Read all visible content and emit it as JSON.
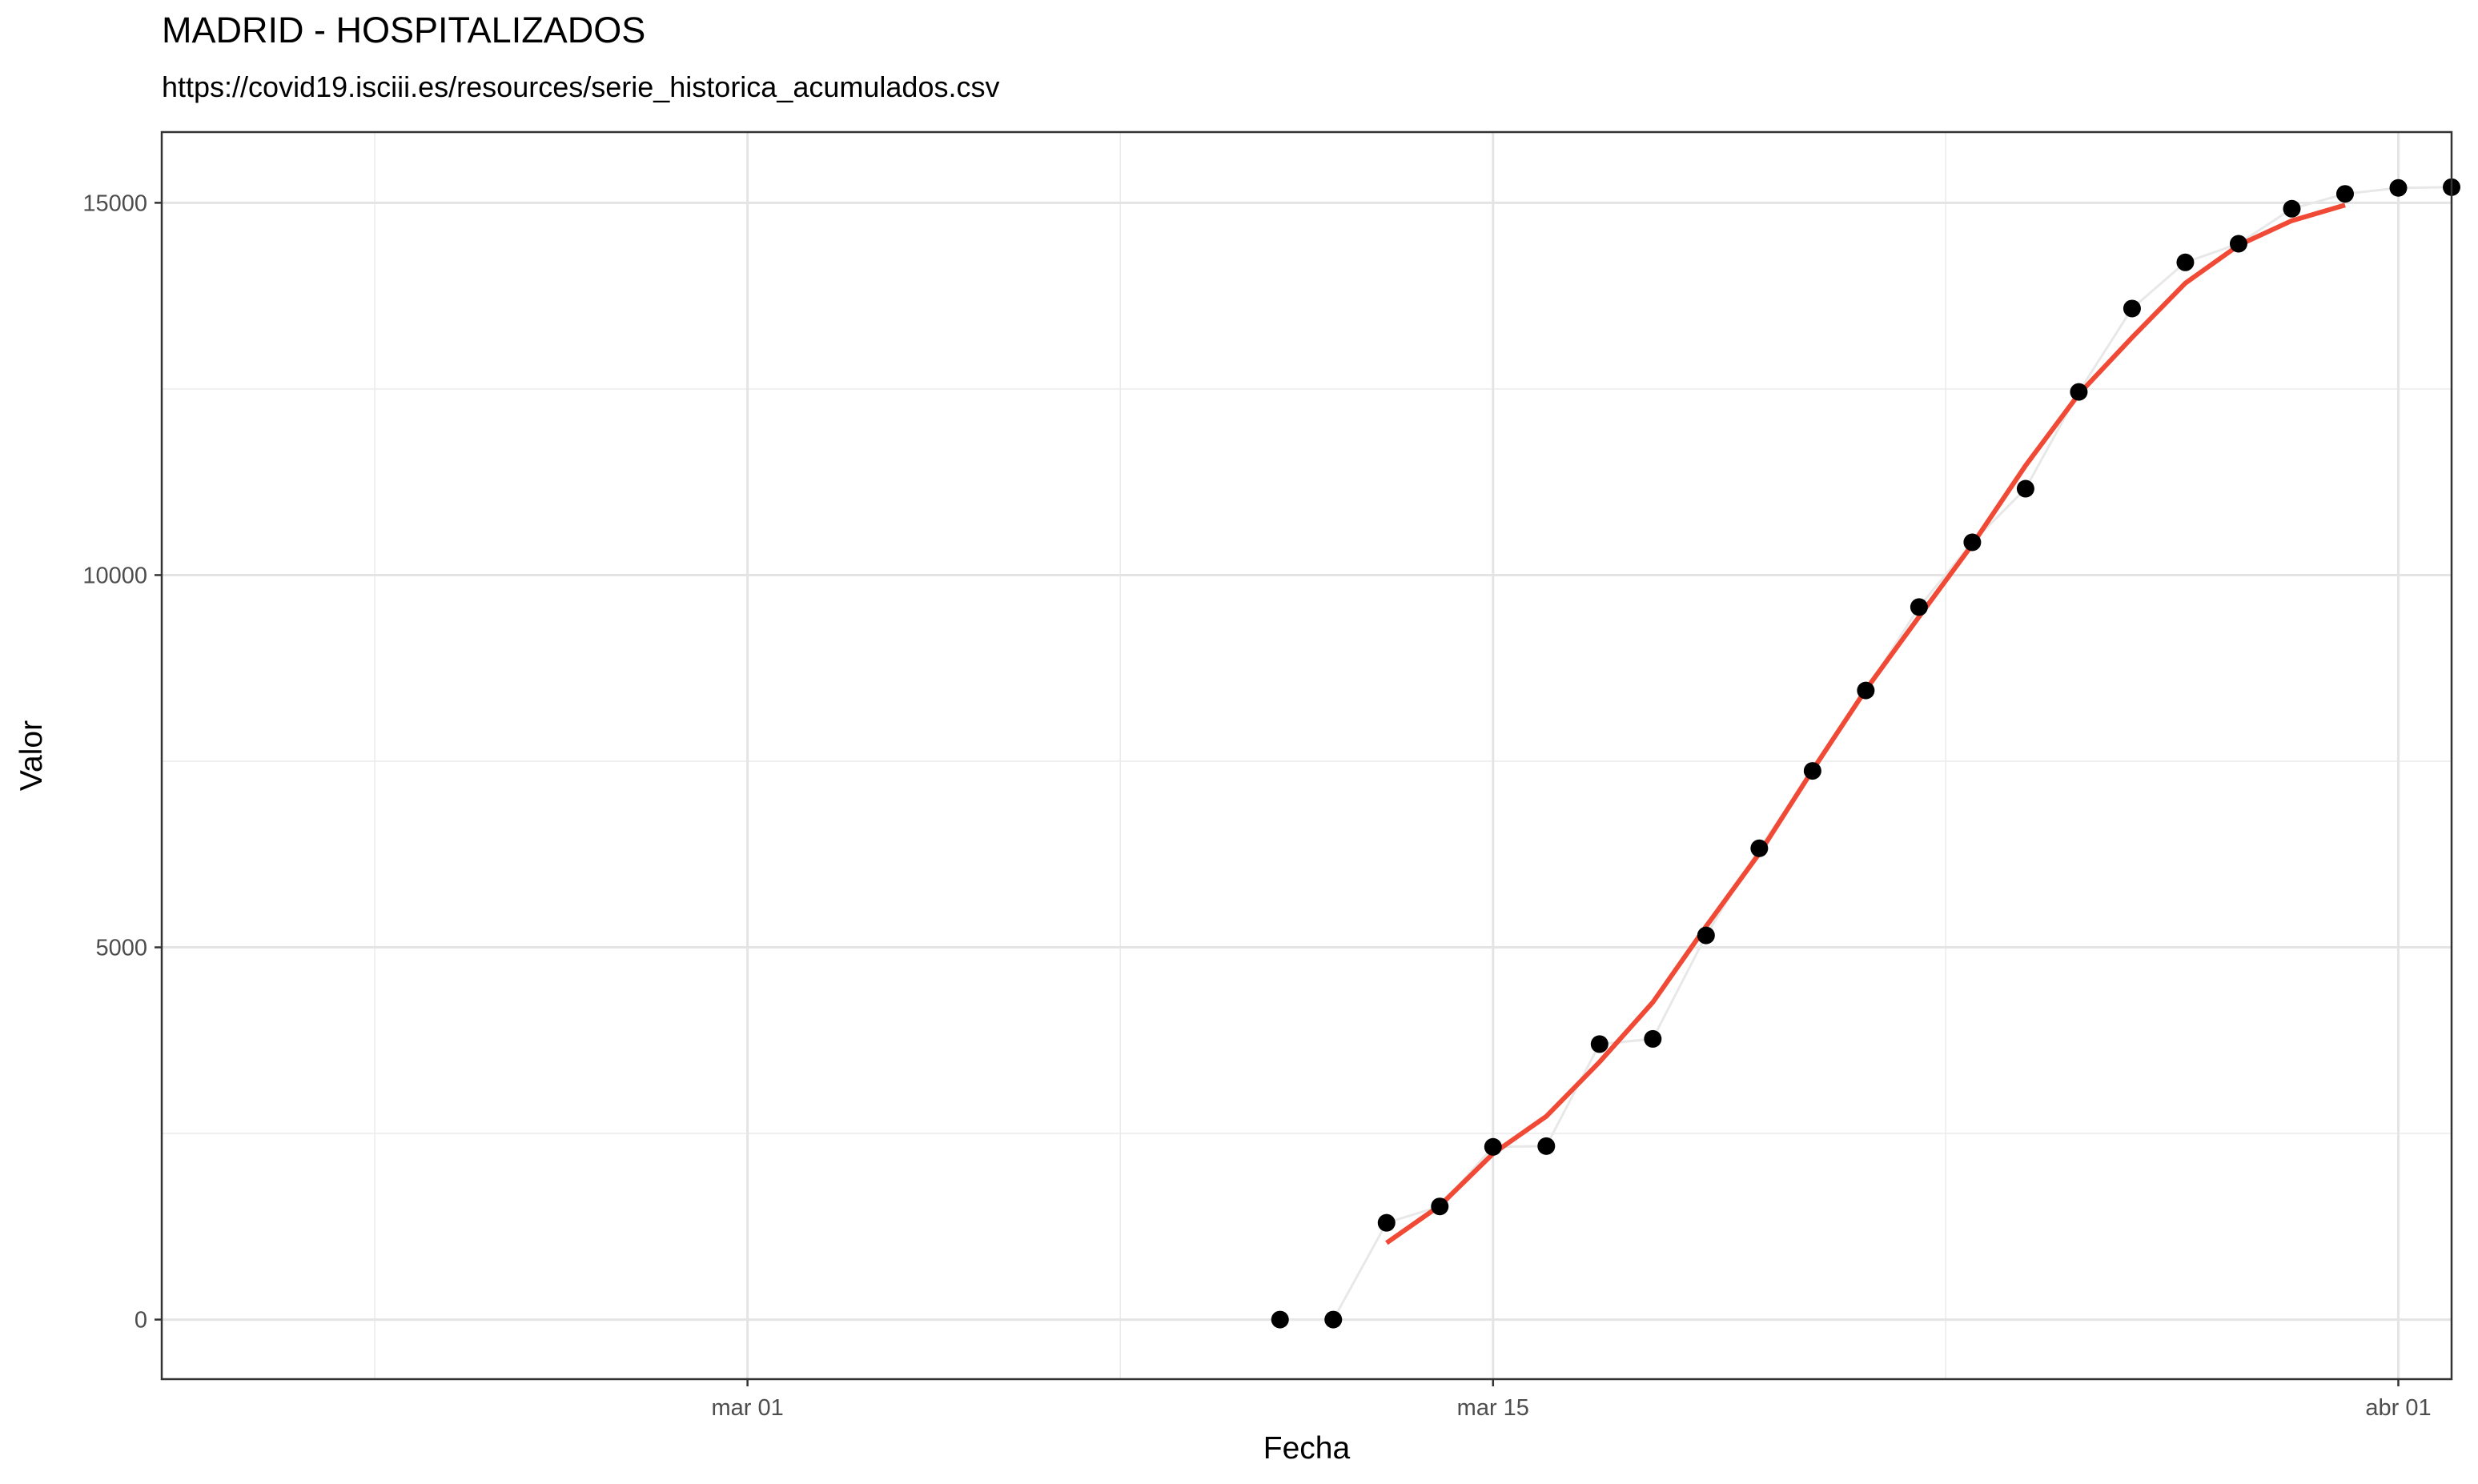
{
  "chart_data": {
    "type": "line",
    "title": "MADRID - HOSPITALIZADOS",
    "subtitle": "https://covid19.isciii.es/resources/serie_historica_acumulados.csv",
    "xlabel": "Fecha",
    "ylabel": "Valor",
    "x_ticks": [
      {
        "date": "2020-03-01",
        "label": "mar 01"
      },
      {
        "date": "2020-03-15",
        "label": "mar 15"
      },
      {
        "date": "2020-04-01",
        "label": "abr 01"
      }
    ],
    "y_ticks": [
      0,
      5000,
      10000,
      15000
    ],
    "xlim": [
      "2020-02-19",
      "2020-04-02"
    ],
    "ylim": [
      -800,
      15950
    ],
    "grid": true,
    "series": [
      {
        "kind": "points-with-line",
        "point_color": "#000000",
        "line_color": "#e8e8e8",
        "points": [
          {
            "x": "2020-03-11",
            "y": 0
          },
          {
            "x": "2020-03-12",
            "y": 0
          },
          {
            "x": "2020-03-13",
            "y": 1300
          },
          {
            "x": "2020-03-14",
            "y": 1520
          },
          {
            "x": "2020-03-15",
            "y": 2320
          },
          {
            "x": "2020-03-16",
            "y": 2330
          },
          {
            "x": "2020-03-17",
            "y": 3700
          },
          {
            "x": "2020-03-18",
            "y": 3770
          },
          {
            "x": "2020-03-19",
            "y": 5160
          },
          {
            "x": "2020-03-20",
            "y": 6330
          },
          {
            "x": "2020-03-21",
            "y": 7370
          },
          {
            "x": "2020-03-22",
            "y": 8450
          },
          {
            "x": "2020-03-23",
            "y": 9570
          },
          {
            "x": "2020-03-24",
            "y": 10440
          },
          {
            "x": "2020-03-25",
            "y": 11160
          },
          {
            "x": "2020-03-26",
            "y": 12460
          },
          {
            "x": "2020-03-27",
            "y": 13580
          },
          {
            "x": "2020-03-28",
            "y": 14200
          },
          {
            "x": "2020-03-29",
            "y": 14450
          },
          {
            "x": "2020-03-30",
            "y": 14920
          },
          {
            "x": "2020-03-31",
            "y": 15120
          },
          {
            "x": "2020-04-01",
            "y": 15200
          },
          {
            "x": "2020-04-02",
            "y": 15210
          }
        ]
      },
      {
        "kind": "smoothed-line",
        "line_color": "#f04a36",
        "points": [
          {
            "x": "2020-03-13",
            "y": 1030
          },
          {
            "x": "2020-03-14",
            "y": 1530
          },
          {
            "x": "2020-03-15",
            "y": 2230
          },
          {
            "x": "2020-03-16",
            "y": 2730
          },
          {
            "x": "2020-03-17",
            "y": 3460
          },
          {
            "x": "2020-03-18",
            "y": 4260
          },
          {
            "x": "2020-03-19",
            "y": 5280
          },
          {
            "x": "2020-03-20",
            "y": 6260
          },
          {
            "x": "2020-03-21",
            "y": 7380
          },
          {
            "x": "2020-03-22",
            "y": 8460
          },
          {
            "x": "2020-03-23",
            "y": 9440
          },
          {
            "x": "2020-03-24",
            "y": 10410
          },
          {
            "x": "2020-03-25",
            "y": 11470
          },
          {
            "x": "2020-03-26",
            "y": 12430
          },
          {
            "x": "2020-03-27",
            "y": 13190
          },
          {
            "x": "2020-03-28",
            "y": 13920
          },
          {
            "x": "2020-03-29",
            "y": 14430
          },
          {
            "x": "2020-03-30",
            "y": 14760
          },
          {
            "x": "2020-03-31",
            "y": 14970
          }
        ]
      }
    ]
  }
}
